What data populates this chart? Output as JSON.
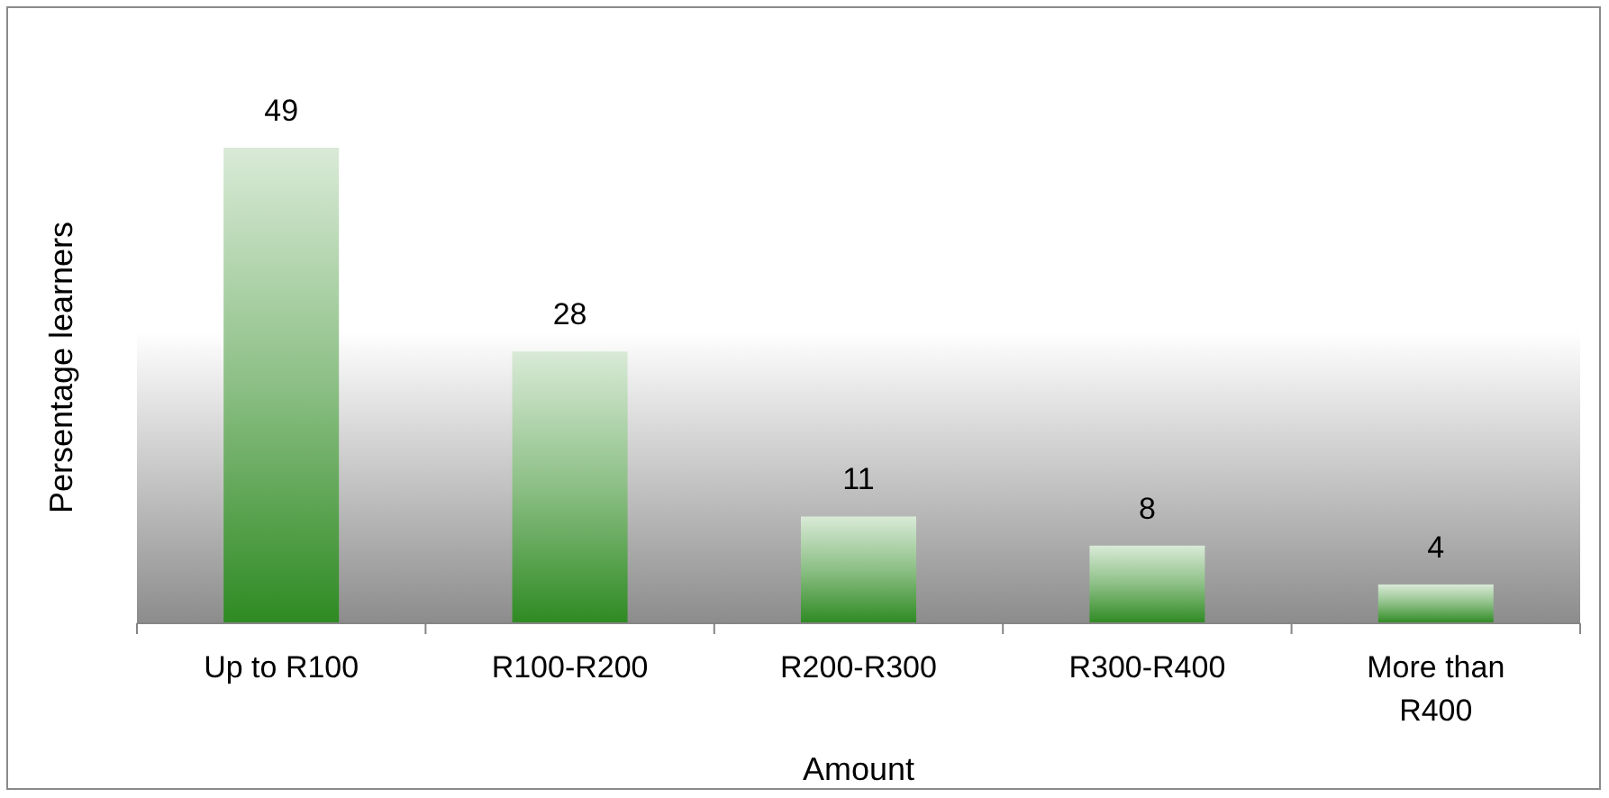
{
  "chart_data": {
    "type": "bar",
    "xlabel": "Amount",
    "ylabel": "Persentage learners",
    "categories": [
      "Up to R100",
      "R100-R200",
      "R200-R300",
      "R300-R400",
      "More than R400"
    ],
    "values": [
      49,
      28,
      11,
      8,
      4
    ],
    "color": "#2e8a22",
    "data_labels": true
  }
}
